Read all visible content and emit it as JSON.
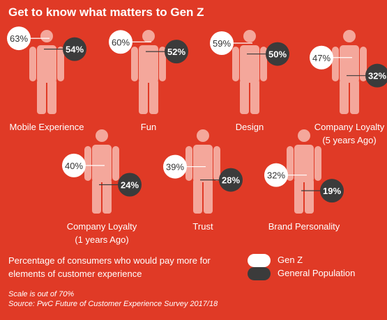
{
  "title": "Get to know what matters to Gen Z",
  "description": "Percentage of consumers who would pay more for elements of customer experience",
  "scale_note": "Scale is out of 70%",
  "source": "Source: PwC Future of Customer Experience Survey 2017/18",
  "colors": {
    "background": "#e03a26",
    "figure": "#f4a79b",
    "gen_z": "#ffffff",
    "general_population": "#3b3b3b"
  },
  "chart_data": {
    "type": "pictograph",
    "scale_max": 70,
    "unit": "%",
    "series": [
      {
        "name": "Gen Z",
        "color": "#ffffff"
      },
      {
        "name": "General Population",
        "color": "#3b3b3b"
      }
    ],
    "categories": [
      "Mobile Experience",
      "Fun",
      "Design",
      "Company Loyalty (5 years Ago)",
      "Company Loyalty (1 years Ago)",
      "Trust",
      "Brand Personality"
    ],
    "items": [
      {
        "label_lines": [
          "Mobile Experience"
        ],
        "gen_z": 63,
        "general_population": 54
      },
      {
        "label_lines": [
          "Fun"
        ],
        "gen_z": 60,
        "general_population": 52
      },
      {
        "label_lines": [
          "Design"
        ],
        "gen_z": 59,
        "general_population": 50
      },
      {
        "label_lines": [
          "Company Loyalty",
          "(5 years Ago)"
        ],
        "gen_z": 47,
        "general_population": 32
      },
      {
        "label_lines": [
          "Company Loyalty",
          "(1 years Ago)"
        ],
        "gen_z": 40,
        "general_population": 24
      },
      {
        "label_lines": [
          "Trust"
        ],
        "gen_z": 39,
        "general_population": 28
      },
      {
        "label_lines": [
          "Brand Personality"
        ],
        "gen_z": 32,
        "general_population": 19
      }
    ]
  }
}
